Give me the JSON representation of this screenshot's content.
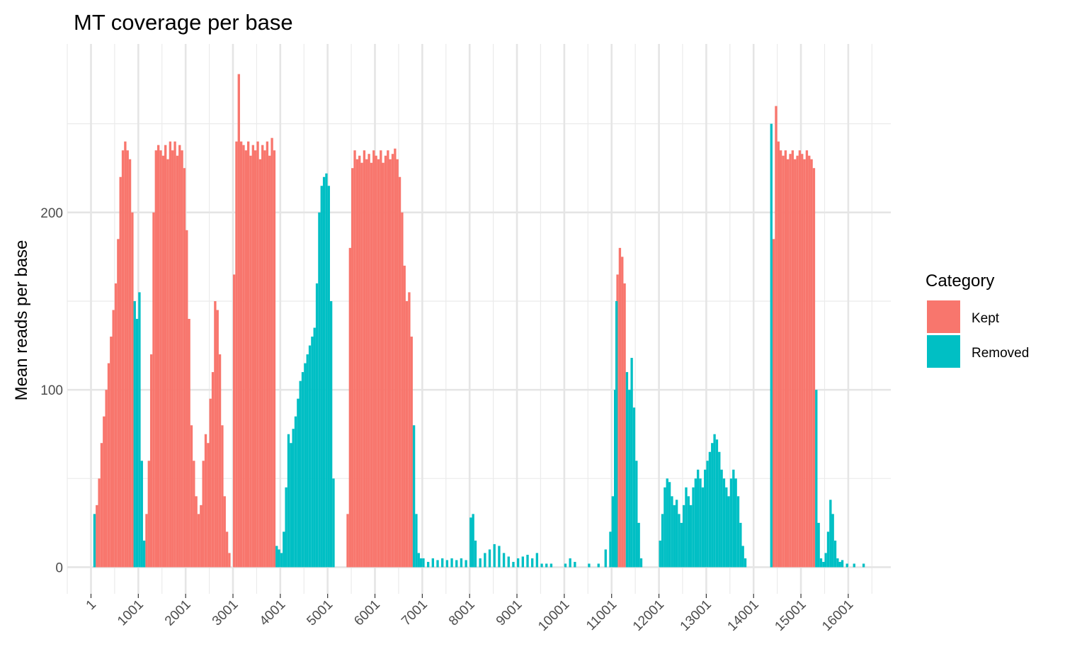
{
  "chart_data": {
    "type": "bar",
    "title": "MT coverage per base",
    "xlabel": "",
    "ylabel": "Mean reads per base",
    "xlim": [
      -500,
      16900
    ],
    "ylim": [
      -15,
      295
    ],
    "x_ticks": [
      1,
      1001,
      2001,
      3001,
      4001,
      5001,
      6001,
      7001,
      8001,
      9001,
      10001,
      11001,
      12001,
      13001,
      14001,
      15001,
      16001
    ],
    "x_tick_labels": [
      "1",
      "1001",
      "2001",
      "3001",
      "4001",
      "5001",
      "6001",
      "7001",
      "8001",
      "9001",
      "10001",
      "11001",
      "12001",
      "13001",
      "14001",
      "15001",
      "16001"
    ],
    "y_ticks": [
      0,
      100,
      200
    ],
    "y_tick_labels": [
      "0",
      "100",
      "200"
    ],
    "grid": true,
    "legend": {
      "title": "Category",
      "position": "right",
      "entries": [
        {
          "label": "Kept",
          "color": "#F8766D"
        },
        {
          "label": "Removed",
          "color": "#00BFC4"
        }
      ]
    },
    "series": [
      {
        "name": "Kept",
        "color": "#F8766D",
        "points": [
          [
            100,
            35
          ],
          [
            150,
            50
          ],
          [
            200,
            70
          ],
          [
            250,
            85
          ],
          [
            300,
            100
          ],
          [
            350,
            115
          ],
          [
            400,
            130
          ],
          [
            450,
            145
          ],
          [
            500,
            160
          ],
          [
            550,
            185
          ],
          [
            600,
            220
          ],
          [
            650,
            235
          ],
          [
            700,
            240
          ],
          [
            750,
            235
          ],
          [
            800,
            230
          ],
          [
            850,
            200
          ],
          [
            1150,
            30
          ],
          [
            1200,
            60
          ],
          [
            1250,
            120
          ],
          [
            1300,
            200
          ],
          [
            1350,
            235
          ],
          [
            1400,
            238
          ],
          [
            1450,
            235
          ],
          [
            1500,
            232
          ],
          [
            1550,
            238
          ],
          [
            1600,
            230
          ],
          [
            1650,
            240
          ],
          [
            1700,
            235
          ],
          [
            1750,
            240
          ],
          [
            1800,
            232
          ],
          [
            1850,
            238
          ],
          [
            1900,
            235
          ],
          [
            1950,
            225
          ],
          [
            2000,
            190
          ],
          [
            2050,
            140
          ],
          [
            2100,
            80
          ],
          [
            2150,
            60
          ],
          [
            2200,
            40
          ],
          [
            2250,
            30
          ],
          [
            2300,
            35
          ],
          [
            2350,
            60
          ],
          [
            2400,
            75
          ],
          [
            2450,
            70
          ],
          [
            2500,
            95
          ],
          [
            2550,
            110
          ],
          [
            2600,
            150
          ],
          [
            2650,
            145
          ],
          [
            2700,
            120
          ],
          [
            2750,
            80
          ],
          [
            2800,
            40
          ],
          [
            2850,
            20
          ],
          [
            2900,
            8
          ],
          [
            3000,
            165
          ],
          [
            3050,
            240
          ],
          [
            3100,
            278
          ],
          [
            3150,
            240
          ],
          [
            3200,
            238
          ],
          [
            3250,
            235
          ],
          [
            3300,
            240
          ],
          [
            3350,
            232
          ],
          [
            3400,
            238
          ],
          [
            3450,
            235
          ],
          [
            3500,
            240
          ],
          [
            3550,
            230
          ],
          [
            3600,
            238
          ],
          [
            3650,
            235
          ],
          [
            3700,
            240
          ],
          [
            3750,
            232
          ],
          [
            3800,
            242
          ],
          [
            3850,
            235
          ],
          [
            5400,
            30
          ],
          [
            5450,
            180
          ],
          [
            5500,
            225
          ],
          [
            5550,
            235
          ],
          [
            5600,
            230
          ],
          [
            5650,
            232
          ],
          [
            5700,
            228
          ],
          [
            5750,
            235
          ],
          [
            5800,
            230
          ],
          [
            5850,
            233
          ],
          [
            5900,
            228
          ],
          [
            5950,
            235
          ],
          [
            6000,
            232
          ],
          [
            6050,
            230
          ],
          [
            6100,
            235
          ],
          [
            6150,
            228
          ],
          [
            6200,
            232
          ],
          [
            6250,
            235
          ],
          [
            6300,
            230
          ],
          [
            6350,
            233
          ],
          [
            6400,
            236
          ],
          [
            6450,
            230
          ],
          [
            6500,
            220
          ],
          [
            6550,
            200
          ],
          [
            6600,
            170
          ],
          [
            6650,
            150
          ],
          [
            6700,
            155
          ],
          [
            6750,
            130
          ],
          [
            11101,
            165
          ],
          [
            11151,
            180
          ],
          [
            11201,
            175
          ],
          [
            11251,
            160
          ],
          [
            14401,
            185
          ],
          [
            14451,
            260
          ],
          [
            14501,
            240
          ],
          [
            14551,
            235
          ],
          [
            14601,
            232
          ],
          [
            14651,
            235
          ],
          [
            14701,
            230
          ],
          [
            14751,
            233
          ],
          [
            14801,
            235
          ],
          [
            14851,
            230
          ],
          [
            14901,
            232
          ],
          [
            14951,
            235
          ],
          [
            15001,
            233
          ],
          [
            15051,
            230
          ],
          [
            15101,
            235
          ],
          [
            15151,
            232
          ],
          [
            15201,
            230
          ],
          [
            15251,
            225
          ]
        ]
      },
      {
        "name": "Removed",
        "color": "#00BFC4",
        "points": [
          [
            50,
            30
          ],
          [
            900,
            150
          ],
          [
            950,
            140
          ],
          [
            1000,
            155
          ],
          [
            1050,
            60
          ],
          [
            1100,
            15
          ],
          [
            3900,
            12
          ],
          [
            3950,
            10
          ],
          [
            4000,
            8
          ],
          [
            4050,
            20
          ],
          [
            4100,
            45
          ],
          [
            4150,
            75
          ],
          [
            4200,
            70
          ],
          [
            4250,
            78
          ],
          [
            4300,
            85
          ],
          [
            4350,
            95
          ],
          [
            4400,
            105
          ],
          [
            4450,
            110
          ],
          [
            4500,
            115
          ],
          [
            4550,
            120
          ],
          [
            4600,
            125
          ],
          [
            4650,
            130
          ],
          [
            4700,
            135
          ],
          [
            4750,
            160
          ],
          [
            4800,
            200
          ],
          [
            4850,
            215
          ],
          [
            4900,
            220
          ],
          [
            4950,
            222
          ],
          [
            5000,
            215
          ],
          [
            5050,
            150
          ],
          [
            5100,
            50
          ],
          [
            6800,
            80
          ],
          [
            6850,
            30
          ],
          [
            6900,
            8
          ],
          [
            6950,
            5
          ],
          [
            7000,
            5
          ],
          [
            7100,
            3
          ],
          [
            7200,
            5
          ],
          [
            7300,
            4
          ],
          [
            7400,
            5
          ],
          [
            7500,
            4
          ],
          [
            7600,
            5
          ],
          [
            7700,
            4
          ],
          [
            7800,
            5
          ],
          [
            7900,
            4
          ],
          [
            8000,
            28
          ],
          [
            8050,
            30
          ],
          [
            8100,
            15
          ],
          [
            8200,
            5
          ],
          [
            8300,
            8
          ],
          [
            8400,
            10
          ],
          [
            8500,
            13
          ],
          [
            8600,
            12
          ],
          [
            8700,
            8
          ],
          [
            8800,
            6
          ],
          [
            8900,
            3
          ],
          [
            9000,
            5
          ],
          [
            9100,
            6
          ],
          [
            9200,
            7
          ],
          [
            9300,
            5
          ],
          [
            9400,
            8
          ],
          [
            9500,
            2
          ],
          [
            9600,
            2
          ],
          [
            9700,
            2
          ],
          [
            10000,
            2
          ],
          [
            10100,
            5
          ],
          [
            10200,
            3
          ],
          [
            10500,
            2
          ],
          [
            10700,
            2
          ],
          [
            10850,
            10
          ],
          [
            10950,
            20
          ],
          [
            11000,
            40
          ],
          [
            11050,
            100
          ],
          [
            11080,
            150
          ],
          [
            11301,
            110
          ],
          [
            11351,
            100
          ],
          [
            11401,
            118
          ],
          [
            11451,
            90
          ],
          [
            11501,
            60
          ],
          [
            11551,
            25
          ],
          [
            11601,
            5
          ],
          [
            12001,
            15
          ],
          [
            12051,
            30
          ],
          [
            12101,
            45
          ],
          [
            12151,
            50
          ],
          [
            12201,
            48
          ],
          [
            12251,
            40
          ],
          [
            12301,
            35
          ],
          [
            12351,
            38
          ],
          [
            12401,
            30
          ],
          [
            12451,
            25
          ],
          [
            12501,
            35
          ],
          [
            12551,
            45
          ],
          [
            12601,
            40
          ],
          [
            12651,
            35
          ],
          [
            12701,
            45
          ],
          [
            12751,
            50
          ],
          [
            12801,
            55
          ],
          [
            12851,
            50
          ],
          [
            12901,
            45
          ],
          [
            12951,
            55
          ],
          [
            13001,
            60
          ],
          [
            13051,
            65
          ],
          [
            13101,
            70
          ],
          [
            13151,
            75
          ],
          [
            13201,
            72
          ],
          [
            13251,
            65
          ],
          [
            13301,
            55
          ],
          [
            13351,
            50
          ],
          [
            13401,
            45
          ],
          [
            13451,
            40
          ],
          [
            13501,
            50
          ],
          [
            13551,
            55
          ],
          [
            13601,
            50
          ],
          [
            13651,
            40
          ],
          [
            13701,
            25
          ],
          [
            13751,
            12
          ],
          [
            13801,
            5
          ],
          [
            14351,
            250
          ],
          [
            15301,
            100
          ],
          [
            15351,
            25
          ],
          [
            15401,
            5
          ],
          [
            15451,
            3
          ],
          [
            15501,
            8
          ],
          [
            15551,
            20
          ],
          [
            15601,
            38
          ],
          [
            15651,
            30
          ],
          [
            15701,
            15
          ],
          [
            15751,
            5
          ],
          [
            15801,
            3
          ],
          [
            15851,
            4
          ],
          [
            15951,
            2
          ],
          [
            16101,
            2
          ],
          [
            16301,
            2
          ]
        ]
      }
    ]
  }
}
